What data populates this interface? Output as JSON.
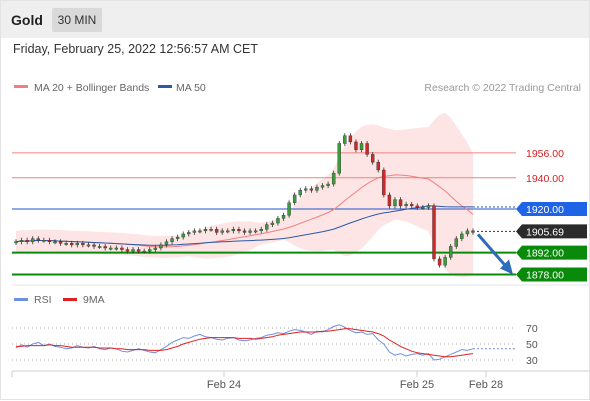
{
  "header": {
    "title": "Gold",
    "timeframe": "30 MIN",
    "datetime": "Friday, February 25, 2022 12:56:57 AM CET"
  },
  "legend": {
    "ma20_label": "MA 20 + Bollinger Bands",
    "ma50_label": "MA 50",
    "copyright": "Research © 2022 Trading Central",
    "rsi_label": "RSI",
    "rsi_ma_label": "9MA"
  },
  "colors": {
    "ma20": "#f08080",
    "ma50": "#2e58a6",
    "band_fill": "#fde0e0",
    "resistance": "#f08080",
    "resistance_label": "#d21f1f",
    "pivot": "#1f55c8",
    "pivot_tag": "#1f63e6",
    "support": "#0a8a0a",
    "support_tag": "#0a8a0a",
    "price_tag": "#2b2b2b",
    "candle_up": "#3c9c3c",
    "candle_down": "#cc2a2a",
    "rsi": "#6f8fe0",
    "rsi_ma": "#e02020",
    "arrow": "#2e6bb8"
  },
  "chart_data": [
    {
      "type": "candlestick",
      "title": "Gold",
      "timeframe": "30 MIN",
      "x_labels": [
        "Feb 24",
        "Feb 25",
        "Feb 28"
      ],
      "ylim": [
        1870,
        1990
      ],
      "levels": {
        "resistance": [
          1956.0,
          1940.0
        ],
        "pivot": 1920.0,
        "last_price": 1905.69,
        "support": [
          1892.0,
          1878.0
        ]
      },
      "level_labels": {
        "r1": "1956.00",
        "r2": "1940.00",
        "pivot": "1920.00",
        "last": "1905.69",
        "s1": "1892.00",
        "s2": "1878.00"
      },
      "close_series": [
        1899,
        1900,
        1899,
        1901,
        1900,
        1900,
        1899,
        1899,
        1898,
        1898,
        1897,
        1898,
        1897,
        1897,
        1896,
        1896,
        1895,
        1895,
        1895,
        1894,
        1893,
        1894,
        1893,
        1893,
        1894,
        1895,
        1897,
        1899,
        1901,
        1902,
        1904,
        1905,
        1906,
        1906,
        1907,
        1907,
        1905,
        1906,
        1906,
        1907,
        1906,
        1905,
        1906,
        1906,
        1907,
        1910,
        1911,
        1914,
        1916,
        1924,
        1929,
        1932,
        1933,
        1932,
        1934,
        1935,
        1936,
        1943,
        1962,
        1967,
        1963,
        1958,
        1962,
        1955,
        1950,
        1945,
        1929,
        1922,
        1926,
        1922,
        1923,
        1922,
        1921,
        1921,
        1922,
        1888,
        1884,
        1889,
        1896,
        1901,
        1904,
        1906,
        1905
      ],
      "projection": {
        "from": 1905,
        "to": 1878
      },
      "series": [
        {
          "name": "MA 20 + Bollinger Bands"
        },
        {
          "name": "MA 50"
        }
      ]
    },
    {
      "type": "line",
      "title": "RSI",
      "ylim": [
        20,
        80
      ],
      "y_ticks": [
        70,
        50,
        30
      ],
      "series": [
        {
          "name": "RSI",
          "values": [
            45,
            49,
            46,
            50,
            52,
            48,
            50,
            47,
            46,
            44,
            45,
            48,
            46,
            45,
            47,
            44,
            43,
            45,
            44,
            41,
            40,
            42,
            44,
            42,
            40,
            39,
            43,
            47,
            52,
            55,
            58,
            57,
            60,
            62,
            59,
            58,
            56,
            55,
            57,
            58,
            55,
            54,
            55,
            57,
            58,
            61,
            62,
            64,
            63,
            66,
            68,
            67,
            65,
            62,
            66,
            65,
            68,
            72,
            74,
            71,
            67,
            64,
            65,
            62,
            63,
            55,
            50,
            40,
            36,
            38,
            35,
            37,
            38,
            36,
            38,
            30,
            31,
            34,
            37,
            40,
            43,
            42,
            44
          ]
        },
        {
          "name": "9MA",
          "values": [
            47,
            47,
            48,
            48,
            48,
            48,
            49,
            48,
            48,
            47,
            46,
            46,
            46,
            46,
            46,
            45,
            45,
            45,
            44,
            44,
            43,
            43,
            43,
            43,
            42,
            42,
            42,
            43,
            45,
            47,
            50,
            52,
            54,
            56,
            57,
            58,
            58,
            58,
            58,
            58,
            57,
            57,
            57,
            56,
            57,
            58,
            59,
            61,
            62,
            63,
            64,
            65,
            65,
            65,
            65,
            66,
            66,
            67,
            68,
            69,
            69,
            68,
            67,
            66,
            65,
            63,
            60,
            55,
            51,
            47,
            44,
            41,
            39,
            38,
            37,
            36,
            35,
            34,
            34,
            35,
            36,
            37,
            38
          ]
        }
      ]
    }
  ]
}
